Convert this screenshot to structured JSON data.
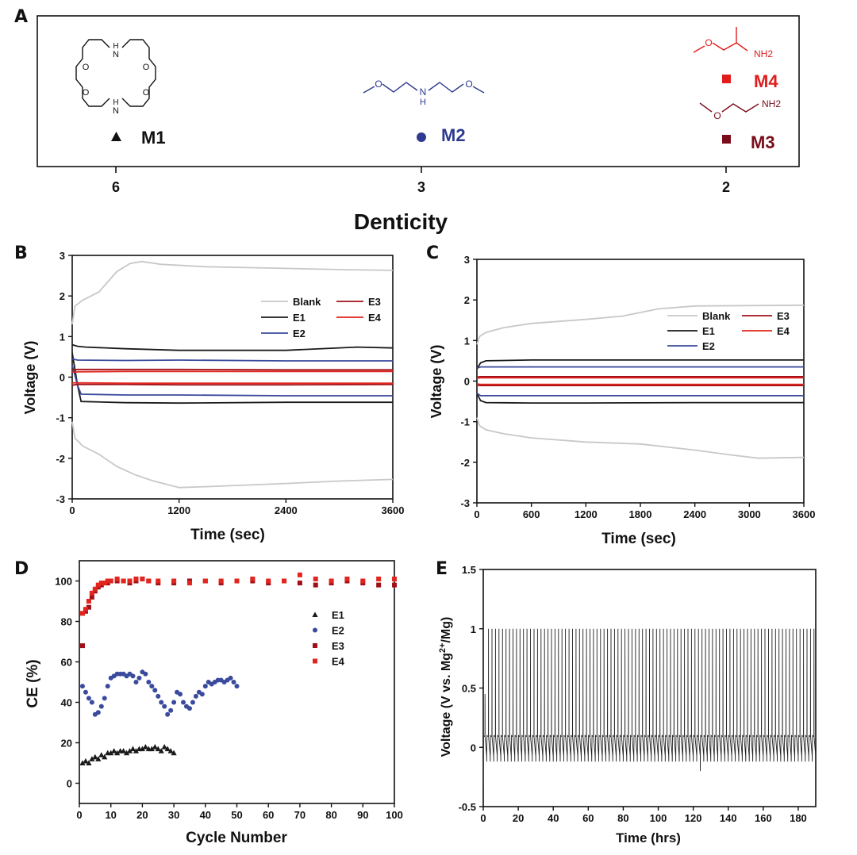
{
  "figure": {
    "panel_letters": [
      "A",
      "B",
      "C",
      "D",
      "E"
    ]
  },
  "colors": {
    "blank": "#c8c8c8",
    "e1": "#1a1a1a",
    "e2": "#3a4a9c",
    "e3": "#a0101a",
    "e4": "#e0261e",
    "m1": "#111111",
    "m2": "#2e3a8f",
    "m3": "#7a0c1a",
    "m4": "#e01c1c"
  },
  "molecules": {
    "m1_atoms": [
      "N",
      "H",
      "O",
      "O",
      "O",
      "O",
      "H",
      "N"
    ],
    "m2_atoms": [
      "O",
      "N",
      "H",
      "O"
    ],
    "m3_atoms": [
      "O",
      "NH2"
    ],
    "m4_atoms": [
      "O",
      "NH2"
    ]
  },
  "chart_data": [
    {
      "panel": "A",
      "type": "scatter",
      "xlabel": "Denticity",
      "ticks": [
        "6",
        "3",
        "2"
      ],
      "points": [
        {
          "label": "M1",
          "denticity": 6,
          "marker": "triangle",
          "color": "m1"
        },
        {
          "label": "M2",
          "denticity": 3,
          "marker": "circle",
          "color": "m2"
        },
        {
          "label": "M4",
          "denticity": 2,
          "marker": "square",
          "color": "m4"
        },
        {
          "label": "M3",
          "denticity": 2,
          "marker": "square",
          "color": "m3"
        }
      ]
    },
    {
      "panel": "B",
      "type": "line",
      "xlabel": "Time (sec)",
      "ylabel": "Voltage (V)",
      "xlim": [
        0,
        3600
      ],
      "ylim": [
        -3,
        3
      ],
      "xticks": [
        "0",
        "1200",
        "2400",
        "3600"
      ],
      "yticks": [
        "3",
        "2",
        "1",
        "0",
        "-1",
        "-2",
        "-3"
      ],
      "legend": [
        "Blank",
        "E1",
        "E2",
        "E3",
        "E4"
      ],
      "series": [
        {
          "name": "Blank",
          "color": "blank",
          "x": [
            0,
            30,
            120,
            300,
            500,
            650,
            780,
            1000,
            1500,
            2400,
            3000,
            3600
          ],
          "y": [
            1.3,
            1.75,
            1.9,
            2.1,
            2.6,
            2.8,
            2.85,
            2.78,
            2.72,
            2.68,
            2.65,
            2.63
          ]
        },
        {
          "name": "Blank",
          "color": "blank",
          "x": [
            0,
            30,
            120,
            300,
            500,
            700,
            900,
            1200,
            1500,
            2400,
            3000,
            3600
          ],
          "y": [
            -1.1,
            -1.5,
            -1.7,
            -1.9,
            -2.2,
            -2.4,
            -2.55,
            -2.72,
            -2.7,
            -2.62,
            -2.56,
            -2.52
          ]
        },
        {
          "name": "E1",
          "color": "e1",
          "x": [
            0,
            60,
            150,
            600,
            1200,
            2400,
            3200,
            3600
          ],
          "y": [
            0.8,
            0.76,
            0.74,
            0.7,
            0.66,
            0.66,
            0.74,
            0.72
          ]
        },
        {
          "name": "E1",
          "color": "e1",
          "x": [
            0,
            60,
            100,
            600,
            1200,
            2400,
            3600
          ],
          "y": [
            0.6,
            -0.2,
            -0.6,
            -0.63,
            -0.64,
            -0.62,
            -0.62
          ]
        },
        {
          "name": "E2",
          "color": "e2",
          "x": [
            0,
            60,
            600,
            1200,
            2400,
            3600
          ],
          "y": [
            0.45,
            0.42,
            0.41,
            0.42,
            0.4,
            0.4
          ]
        },
        {
          "name": "E2",
          "color": "e2",
          "x": [
            0,
            60,
            100,
            600,
            1200,
            2400,
            3600
          ],
          "y": [
            0.3,
            -0.2,
            -0.42,
            -0.44,
            -0.44,
            -0.46,
            -0.46
          ]
        },
        {
          "name": "E3",
          "color": "e3",
          "x": [
            0,
            60,
            600,
            1200,
            2400,
            3600
          ],
          "y": [
            0.18,
            0.19,
            0.19,
            0.19,
            0.18,
            0.18
          ]
        },
        {
          "name": "E3",
          "color": "e3",
          "x": [
            0,
            60,
            600,
            1200,
            2400,
            3600
          ],
          "y": [
            -0.2,
            -0.18,
            -0.18,
            -0.19,
            -0.19,
            -0.18
          ]
        },
        {
          "name": "E4",
          "color": "e4",
          "x": [
            0,
            60,
            600,
            1200,
            2400,
            3600
          ],
          "y": [
            0.12,
            0.13,
            0.14,
            0.14,
            0.14,
            0.14
          ]
        },
        {
          "name": "E4",
          "color": "e4",
          "x": [
            0,
            60,
            600,
            1200,
            2400,
            3600
          ],
          "y": [
            -0.14,
            -0.14,
            -0.15,
            -0.15,
            -0.15,
            -0.15
          ]
        }
      ]
    },
    {
      "panel": "C",
      "type": "line",
      "xlabel": "Time (sec)",
      "ylabel": "Voltage (V)",
      "xlim": [
        0,
        3600
      ],
      "ylim": [
        -3,
        3
      ],
      "xticks": [
        "0",
        "600",
        "1200",
        "1800",
        "2400",
        "3000",
        "3600"
      ],
      "yticks": [
        "3",
        "2",
        "1",
        "0",
        "-1",
        "-2",
        "-3"
      ],
      "legend": [
        "Blank",
        "E1",
        "E2",
        "E3",
        "E4"
      ],
      "series": [
        {
          "name": "Blank",
          "color": "blank",
          "x": [
            0,
            30,
            100,
            300,
            600,
            1200,
            1600,
            2000,
            2400,
            3000,
            3600
          ],
          "y": [
            0.9,
            1.1,
            1.2,
            1.32,
            1.42,
            1.52,
            1.6,
            1.78,
            1.85,
            1.86,
            1.87
          ]
        },
        {
          "name": "Blank",
          "color": "blank",
          "x": [
            0,
            30,
            100,
            300,
            600,
            1200,
            1800,
            2400,
            2800,
            3100,
            3600
          ],
          "y": [
            -0.9,
            -1.1,
            -1.2,
            -1.3,
            -1.4,
            -1.5,
            -1.55,
            -1.7,
            -1.82,
            -1.9,
            -1.88
          ]
        },
        {
          "name": "E1",
          "color": "e1",
          "x": [
            0,
            40,
            100,
            600,
            1200,
            2400,
            3600
          ],
          "y": [
            0.3,
            0.45,
            0.5,
            0.52,
            0.52,
            0.52,
            0.52
          ]
        },
        {
          "name": "E1",
          "color": "e1",
          "x": [
            0,
            40,
            100,
            600,
            1200,
            2400,
            3600
          ],
          "y": [
            -0.3,
            -0.48,
            -0.53,
            -0.54,
            -0.54,
            -0.53,
            -0.53
          ]
        },
        {
          "name": "E2",
          "color": "e2",
          "x": [
            0,
            40,
            600,
            1200,
            2400,
            3600
          ],
          "y": [
            0.32,
            0.35,
            0.35,
            0.35,
            0.35,
            0.35
          ]
        },
        {
          "name": "E2",
          "color": "e2",
          "x": [
            0,
            40,
            600,
            1200,
            2400,
            3600
          ],
          "y": [
            -0.3,
            -0.36,
            -0.36,
            -0.36,
            -0.36,
            -0.36
          ]
        },
        {
          "name": "E3",
          "color": "e3",
          "x": [
            0,
            40,
            600,
            1200,
            2400,
            3600
          ],
          "y": [
            0.1,
            0.11,
            0.11,
            0.11,
            0.11,
            0.11
          ]
        },
        {
          "name": "E3",
          "color": "e3",
          "x": [
            0,
            40,
            600,
            1200,
            2400,
            3600
          ],
          "y": [
            -0.1,
            -0.11,
            -0.11,
            -0.11,
            -0.11,
            -0.11
          ]
        },
        {
          "name": "E4",
          "color": "e4",
          "x": [
            0,
            40,
            600,
            1200,
            2400,
            3600
          ],
          "y": [
            0.07,
            0.08,
            0.08,
            0.08,
            0.08,
            0.08
          ]
        },
        {
          "name": "E4",
          "color": "e4",
          "x": [
            0,
            40,
            600,
            1200,
            2400,
            3600
          ],
          "y": [
            -0.07,
            -0.08,
            -0.08,
            -0.08,
            -0.08,
            -0.08
          ]
        }
      ]
    },
    {
      "panel": "D",
      "type": "scatter",
      "xlabel": "Cycle Number",
      "ylabel": "CE (%)",
      "xlim": [
        0,
        100
      ],
      "ylim": [
        -10,
        110
      ],
      "xticks": [
        "0",
        "10",
        "20",
        "30",
        "40",
        "50",
        "60",
        "70",
        "80",
        "90",
        "100"
      ],
      "yticks": [
        "100",
        "80",
        "60",
        "40",
        "20",
        "0"
      ],
      "legend": [
        "E1",
        "E2",
        "E3",
        "E4"
      ],
      "series": [
        {
          "name": "E1",
          "color": "e1",
          "marker": "triangle",
          "x": [
            1,
            2,
            3,
            4,
            5,
            6,
            7,
            8,
            9,
            10,
            11,
            12,
            13,
            14,
            15,
            16,
            17,
            18,
            19,
            20,
            21,
            22,
            23,
            24,
            25,
            26,
            27,
            28,
            29,
            30
          ],
          "y": [
            10,
            11,
            10,
            12,
            13,
            12,
            14,
            13,
            15,
            15,
            16,
            15,
            16,
            16,
            15,
            16,
            17,
            16,
            17,
            17,
            18,
            17,
            17,
            18,
            17,
            16,
            18,
            17,
            16,
            15
          ]
        },
        {
          "name": "E2",
          "color": "e2",
          "marker": "circle",
          "x": [
            1,
            2,
            3,
            4,
            5,
            6,
            7,
            8,
            9,
            10,
            11,
            12,
            13,
            14,
            15,
            16,
            17,
            18,
            19,
            20,
            21,
            22,
            23,
            24,
            25,
            26,
            27,
            28,
            29,
            30,
            31,
            32,
            33,
            34,
            35,
            36,
            37,
            38,
            39,
            40,
            41,
            42,
            43,
            44,
            45,
            46,
            47,
            48,
            49,
            50
          ],
          "y": [
            48,
            45,
            42,
            40,
            34,
            35,
            38,
            42,
            48,
            52,
            53,
            54,
            54,
            54,
            53,
            54,
            53,
            50,
            52,
            55,
            54,
            50,
            48,
            46,
            43,
            40,
            38,
            34,
            36,
            40,
            45,
            44,
            40,
            38,
            37,
            40,
            43,
            45,
            44,
            48,
            50,
            49,
            50,
            51,
            51,
            50,
            51,
            52,
            50,
            48
          ]
        },
        {
          "name": "E3",
          "color": "e3",
          "marker": "square",
          "x": [
            1,
            2,
            3,
            4,
            5,
            6,
            7,
            8,
            9,
            10,
            12,
            14,
            16,
            18,
            20,
            22,
            25,
            30,
            35,
            40,
            45,
            50,
            55,
            60,
            65,
            70,
            75,
            80,
            85,
            90,
            95,
            100
          ],
          "y": [
            68,
            85,
            87,
            92,
            95,
            97,
            98,
            99,
            99,
            100,
            100,
            100,
            99,
            100,
            101,
            100,
            99,
            99,
            100,
            100,
            99,
            100,
            100,
            99,
            100,
            99,
            98,
            99,
            100,
            99,
            98,
            98
          ]
        },
        {
          "name": "E4",
          "color": "e4",
          "marker": "square",
          "x": [
            1,
            2,
            3,
            4,
            5,
            6,
            7,
            8,
            9,
            10,
            12,
            14,
            16,
            18,
            20,
            22,
            25,
            30,
            35,
            40,
            45,
            50,
            55,
            60,
            65,
            70,
            75,
            80,
            85,
            90,
            95,
            100
          ],
          "y": [
            84,
            86,
            90,
            94,
            96,
            98,
            99,
            99,
            100,
            100,
            101,
            100,
            100,
            101,
            101,
            100,
            100,
            100,
            99,
            100,
            100,
            100,
            101,
            100,
            100,
            103,
            101,
            100,
            101,
            100,
            101,
            101
          ]
        }
      ]
    },
    {
      "panel": "E",
      "type": "line",
      "xlabel": "Time (hrs)",
      "ylabel_main": "Voltage (V vs. Mg",
      "ylabel_sup": "2+",
      "ylabel_end": "/Mg)",
      "xlim": [
        0,
        190
      ],
      "ylim": [
        -0.5,
        1.5
      ],
      "xticks": [
        "0",
        "20",
        "40",
        "60",
        "80",
        "100",
        "120",
        "140",
        "160",
        "180"
      ],
      "yticks": [
        "1.5",
        "1",
        "0.5",
        "0",
        "-0.5"
      ],
      "cycle_period_hrs": 2,
      "high_voltage": 1.0,
      "plateau_voltage": 0.1,
      "low_voltage": -0.12,
      "first_cycle_low": -0.32,
      "outlier_time": 124,
      "outlier_low": -0.2
    }
  ]
}
